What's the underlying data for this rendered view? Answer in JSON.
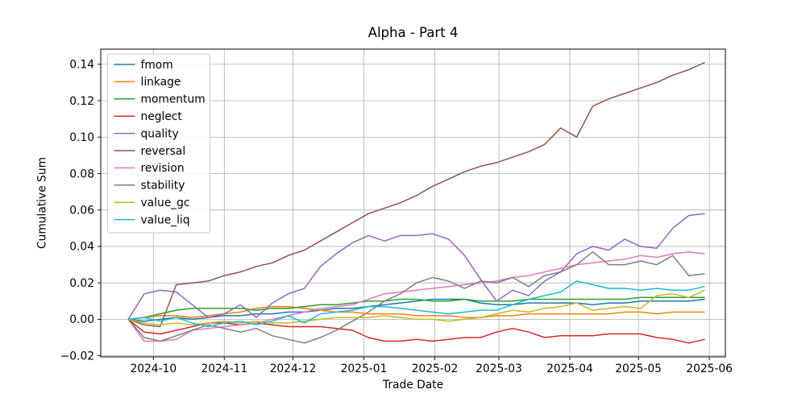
{
  "chart_data": {
    "type": "line",
    "title": "Alpha - Part 4",
    "xlabel": "Trade Date",
    "ylabel": "Cumulative Sum",
    "grid": true,
    "legend_position": "upper left",
    "xlim": [
      "2024-09-08",
      "2025-06-08"
    ],
    "ylim": [
      -0.0206,
      0.1483
    ],
    "xticks": [
      {
        "date": "2024-10-01",
        "label": "2024-10"
      },
      {
        "date": "2024-11-01",
        "label": "2024-11"
      },
      {
        "date": "2024-12-01",
        "label": "2024-12"
      },
      {
        "date": "2025-01-01",
        "label": "2025-01"
      },
      {
        "date": "2025-02-01",
        "label": "2025-02"
      },
      {
        "date": "2025-03-01",
        "label": "2025-03"
      },
      {
        "date": "2025-04-01",
        "label": "2025-04"
      },
      {
        "date": "2025-05-01",
        "label": "2025-05"
      },
      {
        "date": "2025-06-01",
        "label": "2025-06"
      }
    ],
    "yticks": [
      {
        "value": -0.02,
        "label": "−0.02"
      },
      {
        "value": 0.0,
        "label": "0.00"
      },
      {
        "value": 0.02,
        "label": "0.02"
      },
      {
        "value": 0.04,
        "label": "0.04"
      },
      {
        "value": 0.06,
        "label": "0.06"
      },
      {
        "value": 0.08,
        "label": "0.08"
      },
      {
        "value": 0.1,
        "label": "0.10"
      },
      {
        "value": 0.12,
        "label": "0.12"
      },
      {
        "value": 0.14,
        "label": "0.14"
      }
    ],
    "x": [
      "2024-09-20",
      "2024-09-27",
      "2024-10-04",
      "2024-10-11",
      "2024-10-18",
      "2024-10-25",
      "2024-11-01",
      "2024-11-08",
      "2024-11-15",
      "2024-11-22",
      "2024-11-29",
      "2024-12-06",
      "2024-12-13",
      "2024-12-20",
      "2024-12-27",
      "2025-01-03",
      "2025-01-10",
      "2025-01-17",
      "2025-01-24",
      "2025-01-31",
      "2025-02-07",
      "2025-02-14",
      "2025-02-21",
      "2025-02-28",
      "2025-03-07",
      "2025-03-14",
      "2025-03-21",
      "2025-03-28",
      "2025-04-04",
      "2025-04-11",
      "2025-04-18",
      "2025-04-25",
      "2025-05-02",
      "2025-05-09",
      "2025-05-16",
      "2025-05-23",
      "2025-05-30"
    ],
    "series": [
      {
        "name": "fmom",
        "color": "#1f77b4",
        "values": [
          0.0,
          -0.001,
          0.0,
          0.001,
          0.0,
          0.001,
          0.002,
          0.002,
          0.003,
          0.003,
          0.004,
          0.004,
          0.005,
          0.006,
          0.006,
          0.007,
          0.008,
          0.009,
          0.01,
          0.011,
          0.011,
          0.011,
          0.009,
          0.008,
          0.008,
          0.009,
          0.009,
          0.009,
          0.009,
          0.008,
          0.009,
          0.009,
          0.01,
          0.01,
          0.01,
          0.01,
          0.011
        ]
      },
      {
        "name": "linkage",
        "color": "#ff7f0e",
        "values": [
          0.0,
          0.001,
          0.002,
          0.002,
          0.001,
          0.002,
          0.003,
          0.004,
          0.006,
          0.007,
          0.007,
          0.006,
          0.005,
          0.004,
          0.004,
          0.003,
          0.003,
          0.003,
          0.002,
          0.002,
          0.002,
          0.001,
          0.001,
          0.002,
          0.002,
          0.003,
          0.003,
          0.003,
          0.003,
          0.003,
          0.003,
          0.004,
          0.004,
          0.003,
          0.004,
          0.004,
          0.004
        ]
      },
      {
        "name": "momentum",
        "color": "#2ca02c",
        "values": [
          0.0,
          0.001,
          0.003,
          0.005,
          0.006,
          0.006,
          0.006,
          0.006,
          0.005,
          0.006,
          0.006,
          0.007,
          0.008,
          0.008,
          0.009,
          0.01,
          0.01,
          0.011,
          0.011,
          0.01,
          0.01,
          0.011,
          0.01,
          0.01,
          0.01,
          0.011,
          0.011,
          0.011,
          0.011,
          0.011,
          0.011,
          0.011,
          0.012,
          0.012,
          0.012,
          0.012,
          0.012
        ]
      },
      {
        "name": "neglect",
        "color": "#d62728",
        "values": [
          0.0,
          -0.007,
          -0.008,
          -0.006,
          -0.004,
          -0.002,
          -0.002,
          -0.003,
          -0.002,
          -0.003,
          -0.004,
          -0.004,
          -0.004,
          -0.005,
          -0.006,
          -0.01,
          -0.012,
          -0.012,
          -0.011,
          -0.012,
          -0.011,
          -0.01,
          -0.01,
          -0.007,
          -0.005,
          -0.007,
          -0.01,
          -0.009,
          -0.009,
          -0.009,
          -0.008,
          -0.008,
          -0.008,
          -0.01,
          -0.011,
          -0.013,
          -0.011
        ]
      },
      {
        "name": "quality",
        "color": "#9467bd",
        "values": [
          0.0,
          0.014,
          0.016,
          0.015,
          0.008,
          0.001,
          0.003,
          0.008,
          0.001,
          0.009,
          0.014,
          0.017,
          0.029,
          0.036,
          0.042,
          0.046,
          0.043,
          0.046,
          0.046,
          0.047,
          0.044,
          0.035,
          0.022,
          0.01,
          0.016,
          0.013,
          0.021,
          0.026,
          0.036,
          0.04,
          0.038,
          0.044,
          0.04,
          0.039,
          0.05,
          0.057,
          0.058
        ]
      },
      {
        "name": "reversal",
        "color": "#8c564b",
        "values": [
          0.0,
          -0.003,
          -0.004,
          0.019,
          0.02,
          0.021,
          0.024,
          0.026,
          0.029,
          0.031,
          0.035,
          0.038,
          0.043,
          0.048,
          0.053,
          0.058,
          0.061,
          0.064,
          0.068,
          0.073,
          0.077,
          0.081,
          0.084,
          0.086,
          0.089,
          0.092,
          0.096,
          0.105,
          0.1,
          0.117,
          0.121,
          0.124,
          0.127,
          0.13,
          0.134,
          0.137,
          0.141
        ]
      },
      {
        "name": "revision",
        "color": "#e377c2",
        "values": [
          0.0,
          -0.012,
          -0.012,
          -0.011,
          -0.006,
          -0.005,
          -0.004,
          -0.003,
          -0.002,
          0.0,
          0.002,
          0.004,
          0.006,
          0.007,
          0.008,
          0.011,
          0.014,
          0.015,
          0.016,
          0.017,
          0.018,
          0.019,
          0.02,
          0.021,
          0.023,
          0.024,
          0.026,
          0.028,
          0.03,
          0.031,
          0.032,
          0.033,
          0.035,
          0.034,
          0.036,
          0.037,
          0.036
        ]
      },
      {
        "name": "stability",
        "color": "#7f7f7f",
        "values": [
          0.0,
          -0.01,
          -0.012,
          -0.009,
          -0.006,
          -0.003,
          -0.005,
          -0.007,
          -0.005,
          -0.009,
          -0.011,
          -0.013,
          -0.01,
          -0.006,
          -0.001,
          0.004,
          0.01,
          0.014,
          0.02,
          0.023,
          0.021,
          0.017,
          0.021,
          0.02,
          0.023,
          0.018,
          0.024,
          0.026,
          0.03,
          0.037,
          0.03,
          0.03,
          0.032,
          0.03,
          0.035,
          0.024,
          0.025
        ]
      },
      {
        "name": "value_gc",
        "color": "#bcbd22",
        "values": [
          0.0,
          -0.002,
          -0.003,
          -0.002,
          -0.003,
          -0.002,
          -0.001,
          -0.002,
          -0.001,
          -0.002,
          -0.002,
          -0.001,
          0.0,
          0.001,
          0.001,
          0.001,
          0.002,
          0.001,
          0.0,
          0.0,
          -0.001,
          0.0,
          0.001,
          0.003,
          0.005,
          0.004,
          0.006,
          0.007,
          0.009,
          0.005,
          0.006,
          0.007,
          0.006,
          0.013,
          0.014,
          0.012,
          0.016
        ]
      },
      {
        "name": "value_liq",
        "color": "#17becf",
        "values": [
          0.0,
          0.001,
          -0.001,
          0.001,
          -0.002,
          -0.004,
          -0.002,
          -0.001,
          -0.003,
          -0.001,
          0.002,
          -0.002,
          0.003,
          0.004,
          0.005,
          0.007,
          0.007,
          0.006,
          0.005,
          0.004,
          0.003,
          0.004,
          0.005,
          0.005,
          0.008,
          0.011,
          0.013,
          0.015,
          0.021,
          0.019,
          0.017,
          0.017,
          0.016,
          0.017,
          0.016,
          0.016,
          0.018
        ]
      }
    ],
    "style": {
      "grid_color": "#b0b0b0",
      "spine_color": "#000000",
      "legend_border_color": "#cccccc",
      "legend_background": "#ffffff"
    }
  }
}
